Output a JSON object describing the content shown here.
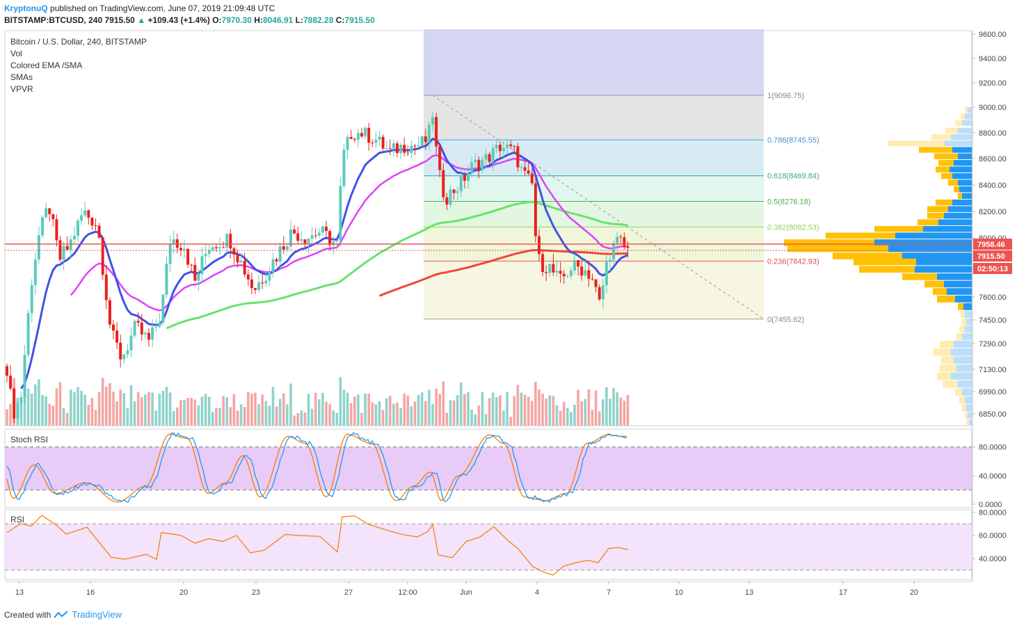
{
  "header": {
    "publisher": "KryptonuQ",
    "published_text": "published on TradingView.com, June 07, 2019 21:09:48 UTC",
    "symbol": "BITSTAMP:BTCUSD, 240",
    "last": "7915.50",
    "change": "+109.43 (+1.4%)",
    "o_label": "O:",
    "o": "7970.30",
    "h_label": "H:",
    "h": "8046.91",
    "l_label": "L:",
    "l": "7882.28",
    "c_label": "C:",
    "c": "7915.50"
  },
  "legend": {
    "title": "Bitcoin / U.S. Dollar, 240, BITSTAMP",
    "items": [
      "Vol",
      "Colored EMA /SMA",
      "SMAs",
      "VPVR"
    ]
  },
  "footer": {
    "created_with": "Created with",
    "brand": "TradingView"
  },
  "colors": {
    "bull": "#26a69a",
    "bear": "#ef5350",
    "ema_blue": "#3f51e8",
    "sma_magenta": "#e040fb",
    "sma_green": "#4caf50",
    "sma_red": "#f44336",
    "vpvr_up": "#2196f3",
    "vpvr_down": "#ffc107"
  },
  "chart_data": {
    "type": "candlestick",
    "price_axis": {
      "range": [
        6760,
        9640
      ],
      "ticks": [
        "9600.00",
        "9400.00",
        "9200.00",
        "9000.00",
        "8800.00",
        "8600.00",
        "8400.00",
        "8200.00",
        "8000.00",
        "7600.00",
        "7450.00",
        "7290.00",
        "7130.00",
        "6990.00",
        "6850.00"
      ]
    },
    "price_labels": [
      {
        "text": "7958.46",
        "value": 7958.46,
        "color": "#ef5350"
      },
      {
        "text": "7915.50",
        "value": 7915.5,
        "color": "#ef5350"
      },
      {
        "text": "02:50:13",
        "value": 7820,
        "color": "#ef5350"
      }
    ],
    "time_axis": {
      "labels": [
        "13",
        "16",
        "20",
        "23",
        "27",
        "12:00",
        "Jun",
        "4",
        "7",
        "10",
        "13",
        "17",
        "20"
      ]
    },
    "fibonacci": {
      "levels": [
        {
          "label": "1(9096.75)",
          "value": 9096.75,
          "ratio": "1"
        },
        {
          "label": "0.786(8745.55)",
          "value": 8745.55,
          "ratio": "0.786"
        },
        {
          "label": "0.618(8469.84)",
          "value": 8469.84,
          "ratio": "0.618"
        },
        {
          "label": "0.5(8276.18)",
          "value": 8276.18,
          "ratio": "0.5"
        },
        {
          "label": "0.382(8082.53)",
          "value": 8082.53,
          "ratio": "0.382"
        },
        {
          "label": "0.236(7842.93)",
          "value": 7842.93,
          "ratio": "0.236"
        },
        {
          "label": "0(7455.62)",
          "value": 7455.62,
          "ratio": "0"
        }
      ]
    },
    "stoch_rsi": {
      "label": "Stoch RSI",
      "range": [
        -5,
        105
      ],
      "ticks": [
        "80.0000",
        "40.0000",
        "0.0000"
      ],
      "bands": [
        20,
        80
      ]
    },
    "rsi": {
      "label": "RSI",
      "range": [
        22,
        82
      ],
      "ticks": [
        "80.0000",
        "60.0000",
        "40.0000"
      ],
      "bands": [
        30,
        70
      ]
    }
  }
}
